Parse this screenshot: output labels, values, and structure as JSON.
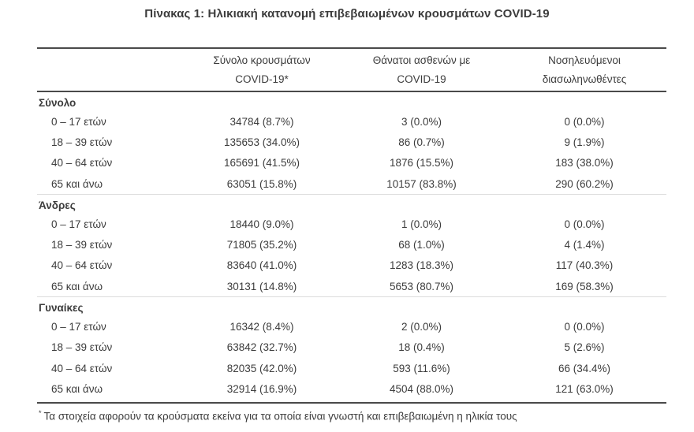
{
  "title": "Πίνακας 1: Ηλικιακή κατανομή επιβεβαιωμένων κρουσμάτων COVID-19",
  "table": {
    "column_headers": [
      {
        "line1": "Σύνολο κρουσμάτων",
        "line2": "COVID-19*"
      },
      {
        "line1": "Θάνατοι ασθενών με",
        "line2": "COVID-19"
      },
      {
        "line1": "Νοσηλευόμενοι",
        "line2": "διασωληνωθέντες"
      }
    ],
    "sections": [
      {
        "label": "Σύνολο",
        "rows": [
          {
            "age": "0 – 17 ετών",
            "cases": "34784 (8.7%)",
            "deaths": "3 (0.0%)",
            "intubated": "0 (0.0%)"
          },
          {
            "age": "18 – 39 ετών",
            "cases": "135653 (34.0%)",
            "deaths": "86 (0.7%)",
            "intubated": "9 (1.9%)"
          },
          {
            "age": "40 – 64 ετών",
            "cases": "165691 (41.5%)",
            "deaths": "1876 (15.5%)",
            "intubated": "183 (38.0%)"
          },
          {
            "age": "65 και άνω",
            "cases": "63051 (15.8%)",
            "deaths": "10157 (83.8%)",
            "intubated": "290 (60.2%)"
          }
        ]
      },
      {
        "label": "Άνδρες",
        "rows": [
          {
            "age": "0 – 17 ετών",
            "cases": "18440 (9.0%)",
            "deaths": "1 (0.0%)",
            "intubated": "0 (0.0%)"
          },
          {
            "age": "18 – 39 ετών",
            "cases": "71805 (35.2%)",
            "deaths": "68 (1.0%)",
            "intubated": "4 (1.4%)"
          },
          {
            "age": "40 – 64 ετών",
            "cases": "83640 (41.0%)",
            "deaths": "1283 (18.3%)",
            "intubated": "117 (40.3%)"
          },
          {
            "age": "65 και άνω",
            "cases": "30131 (14.8%)",
            "deaths": "5653 (80.7%)",
            "intubated": "169 (58.3%)"
          }
        ]
      },
      {
        "label": "Γυναίκες",
        "rows": [
          {
            "age": "0 – 17 ετών",
            "cases": "16342 (8.4%)",
            "deaths": "2 (0.0%)",
            "intubated": "0 (0.0%)"
          },
          {
            "age": "18 – 39 ετών",
            "cases": "63842 (32.7%)",
            "deaths": "18 (0.4%)",
            "intubated": "5 (2.6%)"
          },
          {
            "age": "40 – 64 ετών",
            "cases": "82035 (42.0%)",
            "deaths": "593 (11.6%)",
            "intubated": "66 (34.4%)"
          },
          {
            "age": "65 και άνω",
            "cases": "32914 (16.9%)",
            "deaths": "4504 (88.0%)",
            "intubated": "121 (63.0%)"
          }
        ]
      }
    ]
  },
  "footnote": {
    "marker": "*",
    "text": "Τα στοιχεία αφορούν τα κρούσματα εκείνα για τα οποία είναι γνωστή και επιβεβαιωμένη η ηλικία τους"
  },
  "colors": {
    "text": "#3c3c3c",
    "rule": "#4a4a4a",
    "section_divider": "#dcdcdc",
    "background": "#ffffff"
  }
}
